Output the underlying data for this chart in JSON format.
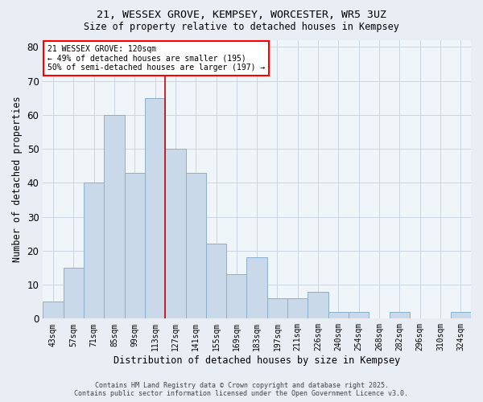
{
  "title": "21, WESSEX GROVE, KEMPSEY, WORCESTER, WR5 3UZ",
  "subtitle": "Size of property relative to detached houses in Kempsey",
  "xlabel": "Distribution of detached houses by size in Kempsey",
  "ylabel": "Number of detached properties",
  "bin_labels": [
    "43sqm",
    "57sqm",
    "71sqm",
    "85sqm",
    "99sqm",
    "113sqm",
    "127sqm",
    "141sqm",
    "155sqm",
    "169sqm",
    "183sqm",
    "197sqm",
    "211sqm",
    "226sqm",
    "240sqm",
    "254sqm",
    "268sqm",
    "282sqm",
    "296sqm",
    "310sqm",
    "324sqm"
  ],
  "bin_values": [
    5,
    15,
    40,
    60,
    43,
    65,
    50,
    43,
    22,
    13,
    18,
    6,
    6,
    8,
    2,
    2,
    0,
    2,
    0,
    0,
    2
  ],
  "bar_color": "#c9d9ea",
  "bar_edge_color": "#8ab0cc",
  "ylim": [
    0,
    82
  ],
  "yticks": [
    0,
    10,
    20,
    30,
    40,
    50,
    60,
    70,
    80
  ],
  "annotation_text": "21 WESSEX GROVE: 120sqm\n← 49% of detached houses are smaller (195)\n50% of semi-detached houses are larger (197) →",
  "vline_color": "#cc0000",
  "vline_x": 5.5,
  "footnote1": "Contains HM Land Registry data © Crown copyright and database right 2025.",
  "footnote2": "Contains public sector information licensed under the Open Government Licence v3.0.",
  "background_color": "#e8eef4",
  "plot_bg_color": "#f0f5f9",
  "grid_color": "#c5d0dc"
}
